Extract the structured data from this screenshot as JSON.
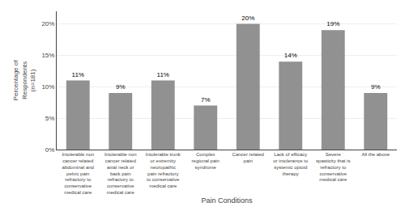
{
  "chart_data": {
    "type": "bar",
    "categories": [
      "Intolerable non\ncancer related\nabdominal and\npelvic pain\nrefractory to\nconservative\nmedical care",
      "Intolerable non\ncancer related\naxial neck or\nback pain\nrefractory to\nconservative\nmedical care",
      "Intolerable trunk\nor extremity\nneuropathic\npain refractory\nto conservative\nmedical care",
      "Complex\nregional pain\nsyndrome",
      "Cancer related\npain",
      "Lack of efficacy\nor intolerance to\nsystemic opioid\ntherapy",
      "Severe\nspasticity that is\nrefractory to\nconservative\nmedical care",
      "All the above"
    ],
    "values": [
      11,
      9,
      11,
      7,
      20,
      14,
      19,
      9
    ],
    "value_labels": [
      "11%",
      "9%",
      "11%",
      "7%",
      "20%",
      "14%",
      "19%",
      "9%"
    ],
    "data_labels": true,
    "color": "#919191",
    "xlabel": "Pain Conditions",
    "ylabel": "Percentage of\nRespondents\n(n=181)",
    "ylim": [
      0,
      22
    ],
    "yticks": [
      {
        "value": 0,
        "label": "0%"
      },
      {
        "value": 5,
        "label": "5%"
      },
      {
        "value": 10,
        "label": "10%"
      },
      {
        "value": 15,
        "label": "15%"
      },
      {
        "value": 20,
        "label": "20%"
      }
    ],
    "grid": true
  }
}
